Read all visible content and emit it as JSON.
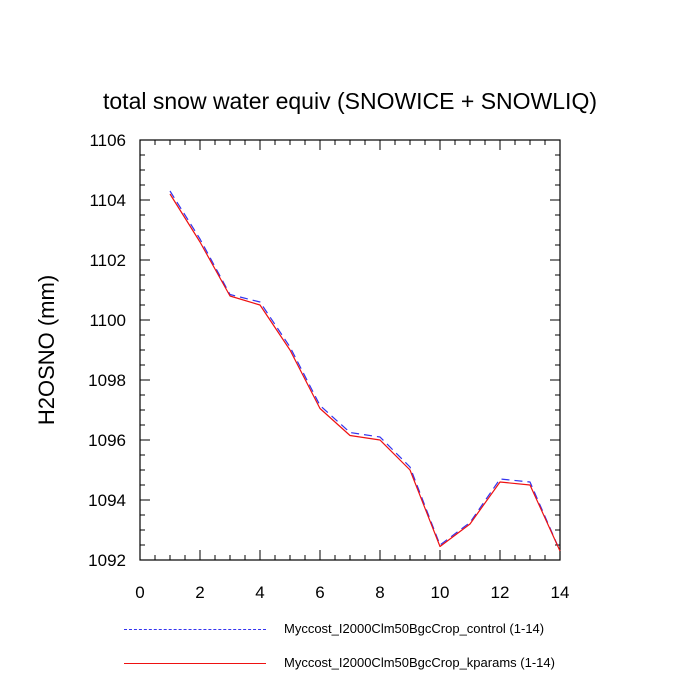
{
  "chart_data": {
    "type": "line",
    "title": "total snow water equiv (SNOWICE + SNOWLIQ)",
    "xlabel": "",
    "ylabel": "H2OSNO  (mm)",
    "xlim": [
      0,
      14
    ],
    "ylim": [
      1092,
      1106
    ],
    "xticks": [
      0,
      2,
      4,
      6,
      8,
      10,
      12,
      14
    ],
    "yticks": [
      1092,
      1094,
      1096,
      1098,
      1100,
      1102,
      1104,
      1106
    ],
    "grid": false,
    "legend_position": "bottom",
    "series": [
      {
        "name": "Myccost_I2000Clm50BgcCrop_control (1-14)",
        "color": "#3333ee",
        "style": "dashed",
        "x": [
          1,
          2,
          3,
          4,
          5,
          6,
          7,
          8,
          9,
          10,
          11,
          12,
          13,
          14
        ],
        "y": [
          1104.3,
          1102.7,
          1100.85,
          1100.6,
          1099.1,
          1097.15,
          1096.25,
          1096.1,
          1095.1,
          1092.5,
          1093.25,
          1094.7,
          1094.6,
          1092.3
        ]
      },
      {
        "name": "Myccost_I2000Clm50BgcCrop_kparams (1-14)",
        "color": "#ee1111",
        "style": "solid",
        "x": [
          1,
          2,
          3,
          4,
          5,
          6,
          7,
          8,
          9,
          10,
          11,
          12,
          13,
          14
        ],
        "y": [
          1104.2,
          1102.6,
          1100.8,
          1100.5,
          1099.0,
          1097.05,
          1096.15,
          1096.0,
          1095.0,
          1092.45,
          1093.2,
          1094.6,
          1094.5,
          1092.3
        ]
      }
    ]
  }
}
